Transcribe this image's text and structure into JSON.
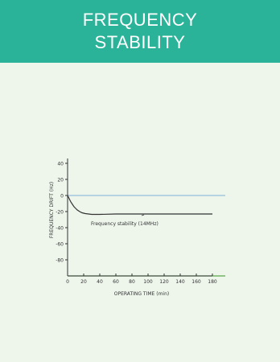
{
  "header": {
    "title_line1": "FREQUENCY",
    "title_line2": "STABILITY"
  },
  "chart_data": {
    "type": "line",
    "xlabel": "OPERATING TIME (min)",
    "ylabel": "FREQUENCY DRIFT (Hz)",
    "xlim": [
      0,
      180
    ],
    "ylim": [
      -100,
      40
    ],
    "x_ticks": [
      0,
      20,
      40,
      60,
      80,
      100,
      120,
      140,
      160,
      180
    ],
    "y_ticks": [
      40,
      20,
      0,
      -20,
      -40,
      -60,
      -80
    ],
    "grid": false,
    "annotation": "Frequency stability (14MHz)",
    "reference_line_y": 0,
    "series": [
      {
        "x": [
          0,
          2,
          4,
          6,
          8,
          10,
          12,
          15,
          18,
          22,
          26,
          30,
          40,
          60,
          80,
          100,
          120,
          140,
          160,
          180
        ],
        "y": [
          0,
          -4,
          -8,
          -11,
          -14,
          -16,
          -18,
          -20,
          -21.5,
          -22.5,
          -23,
          -23.5,
          -23.5,
          -23,
          -23,
          -23,
          -23,
          -23,
          -23,
          -23
        ]
      }
    ],
    "colors": {
      "curve": "#333333",
      "reference": "#7fb0d8",
      "baseline": "#5aa84a",
      "axis": "#333333"
    }
  }
}
